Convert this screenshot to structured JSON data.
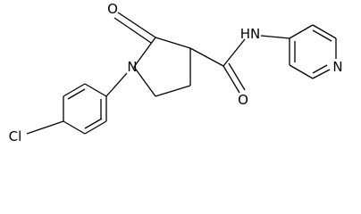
{
  "atoms": [
    {
      "label": "O"
    },
    {
      "label": "N"
    },
    {
      "label": "O"
    },
    {
      "label": "HN"
    },
    {
      "label": "N"
    },
    {
      "label": "Cl"
    }
  ]
}
